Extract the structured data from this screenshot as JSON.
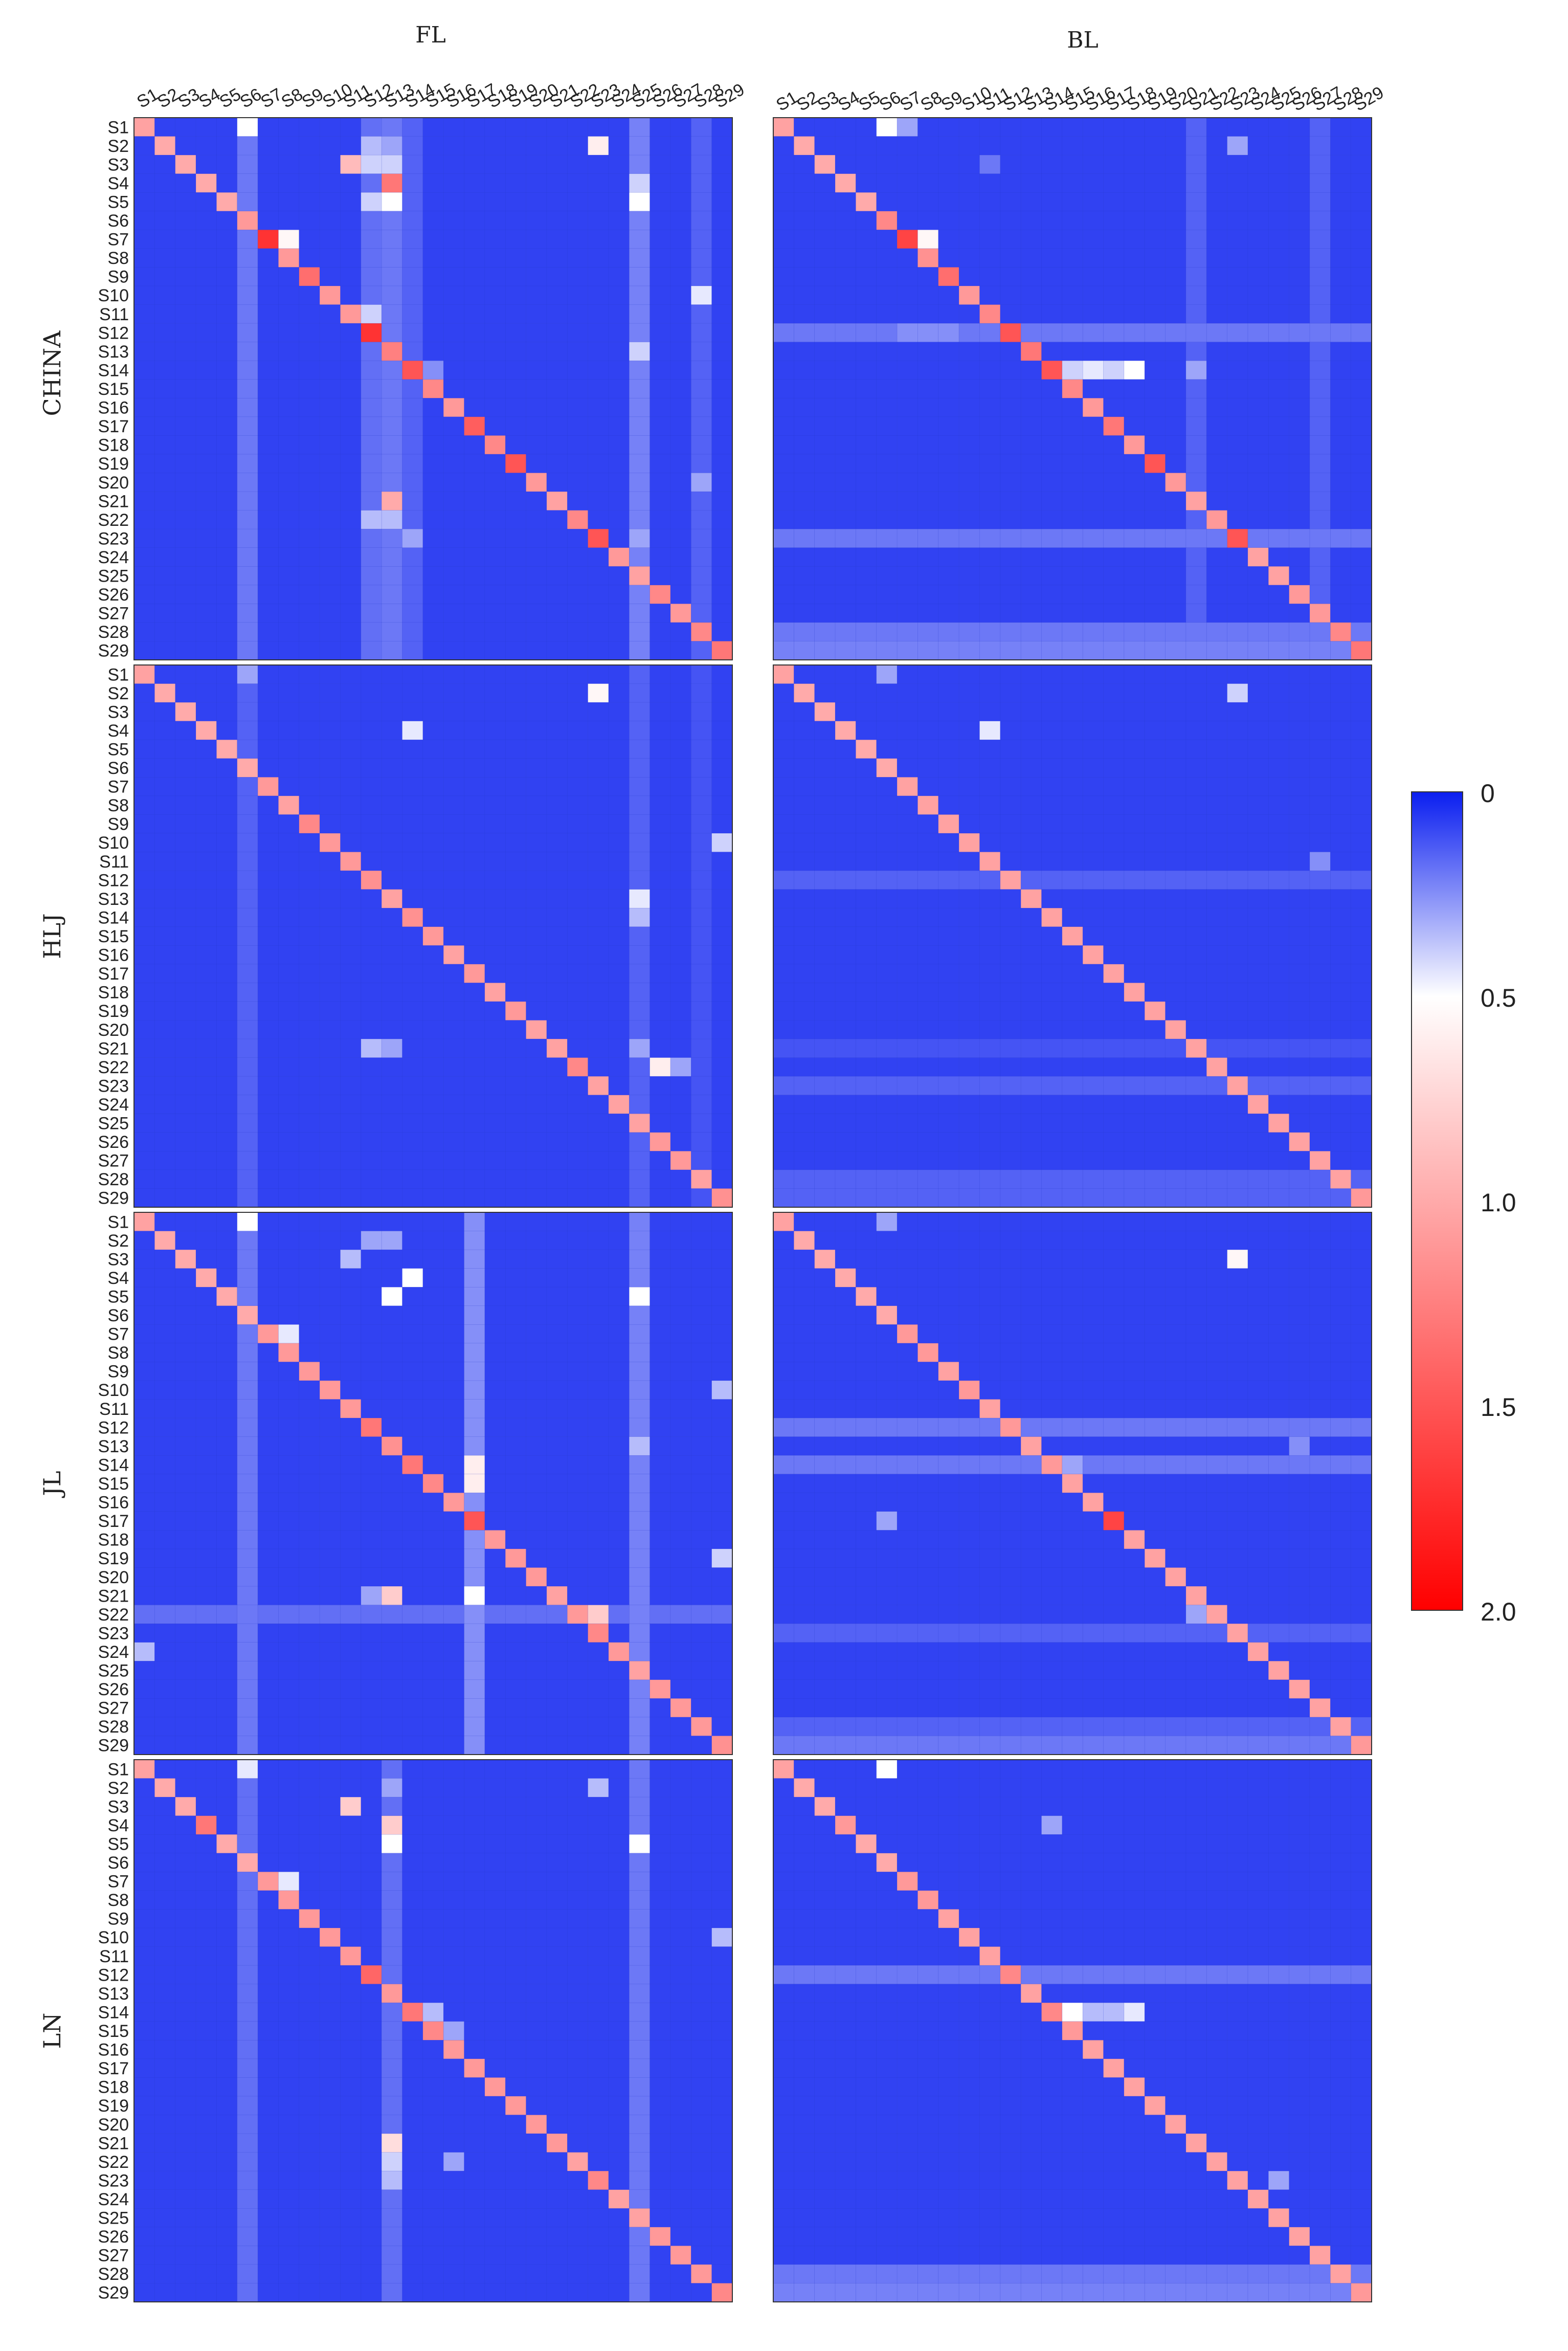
{
  "chart_data": {
    "type": "heatmap",
    "size": 29,
    "columns": [
      "FL",
      "BL"
    ],
    "regions": [
      "CHINA",
      "HLJ",
      "JL",
      "LN"
    ],
    "axis_labels": [
      "S1",
      "S2",
      "S3",
      "S4",
      "S5",
      "S6",
      "S7",
      "S8",
      "S9",
      "S10",
      "S11",
      "S12",
      "S13",
      "S14",
      "S15",
      "S16",
      "S17",
      "S18",
      "S19",
      "S20",
      "S21",
      "S22",
      "S23",
      "S24",
      "S25",
      "S26",
      "S27",
      "S28",
      "S29"
    ],
    "colorbar": {
      "min": 0,
      "max": 2.0,
      "tick_labels": [
        "0",
        "0.5",
        "1.0",
        "1.5",
        "2.0"
      ],
      "colors": [
        "#0a1ef0",
        "#ffffff",
        "#ff0000"
      ]
    },
    "baseline": {
      "value": 0.08
    },
    "row_band_default": 0.1,
    "panels": [
      {
        "region": "CHINA",
        "column": "FL",
        "diag": [
          1.05,
          1.0,
          1.0,
          1.0,
          1.0,
          1.1,
          1.7,
          1.1,
          1.35,
          1.1,
          1.1,
          1.7,
          1.25,
          1.5,
          1.2,
          1.1,
          1.45,
          1.2,
          1.5,
          1.1,
          1.05,
          1.2,
          1.5,
          1.1,
          1.05,
          1.2,
          1.1,
          1.2,
          1.3
        ],
        "cells": [
          [
            0,
            5,
            0.5
          ],
          [
            1,
            11,
            0.35
          ],
          [
            1,
            12,
            0.3
          ],
          [
            1,
            22,
            0.6
          ],
          [
            2,
            10,
            0.9
          ],
          [
            2,
            11,
            0.4
          ],
          [
            2,
            12,
            0.4
          ],
          [
            3,
            12,
            1.3
          ],
          [
            3,
            24,
            0.4
          ],
          [
            4,
            11,
            0.4
          ],
          [
            4,
            12,
            0.5
          ],
          [
            4,
            24,
            0.5
          ],
          [
            6,
            7,
            0.55
          ],
          [
            9,
            27,
            0.45
          ],
          [
            10,
            11,
            0.4
          ],
          [
            12,
            24,
            0.4
          ],
          [
            13,
            14,
            0.25
          ],
          [
            20,
            12,
            1.0
          ],
          [
            21,
            11,
            0.35
          ],
          [
            21,
            12,
            0.35
          ],
          [
            22,
            13,
            0.3
          ],
          [
            22,
            24,
            0.3
          ],
          [
            19,
            27,
            0.3
          ]
        ],
        "row_bands": [],
        "col_bands": [
          [
            5,
            0.2
          ],
          [
            11,
            0.18
          ],
          [
            12,
            0.2
          ],
          [
            13,
            0.15
          ],
          [
            24,
            0.22
          ],
          [
            27,
            0.15
          ]
        ]
      },
      {
        "region": "CHINA",
        "column": "BL",
        "diag": [
          1.05,
          1.0,
          1.0,
          1.0,
          1.0,
          1.2,
          1.6,
          1.15,
          1.35,
          1.1,
          1.2,
          1.5,
          1.3,
          1.5,
          1.2,
          1.1,
          1.3,
          1.1,
          1.5,
          1.1,
          1.05,
          1.1,
          1.5,
          1.05,
          1.05,
          1.1,
          1.1,
          1.2,
          1.3
        ],
        "cells": [
          [
            0,
            5,
            0.5
          ],
          [
            0,
            6,
            0.3
          ],
          [
            1,
            22,
            0.3
          ],
          [
            6,
            7,
            0.55
          ],
          [
            13,
            14,
            0.4
          ],
          [
            13,
            15,
            0.45
          ],
          [
            13,
            16,
            0.4
          ],
          [
            13,
            17,
            0.5
          ],
          [
            13,
            20,
            0.3
          ],
          [
            11,
            6,
            0.25
          ],
          [
            11,
            7,
            0.25
          ],
          [
            11,
            8,
            0.25
          ],
          [
            2,
            10,
            0.2
          ]
        ],
        "row_bands": [
          [
            11,
            0.2
          ],
          [
            22,
            0.2
          ],
          [
            27,
            0.2
          ],
          [
            28,
            0.22
          ]
        ],
        "col_bands": [
          [
            20,
            0.15
          ],
          [
            26,
            0.15
          ]
        ]
      },
      {
        "region": "HLJ",
        "column": "FL",
        "diag": [
          1.05,
          1.0,
          1.0,
          1.0,
          1.0,
          1.0,
          1.1,
          1.05,
          1.2,
          1.1,
          1.1,
          1.15,
          1.05,
          1.15,
          1.1,
          1.05,
          1.1,
          1.05,
          1.1,
          1.05,
          1.05,
          1.2,
          1.05,
          1.05,
          1.05,
          1.1,
          1.1,
          1.05,
          1.15
        ],
        "cells": [
          [
            0,
            5,
            0.3
          ],
          [
            1,
            22,
            0.55
          ],
          [
            3,
            13,
            0.45
          ],
          [
            9,
            28,
            0.4
          ],
          [
            12,
            24,
            0.45
          ],
          [
            13,
            24,
            0.35
          ],
          [
            20,
            11,
            0.35
          ],
          [
            20,
            12,
            0.3
          ],
          [
            20,
            24,
            0.3
          ],
          [
            21,
            25,
            0.6
          ],
          [
            21,
            26,
            0.3
          ]
        ],
        "row_bands": [],
        "col_bands": [
          [
            5,
            0.15
          ],
          [
            24,
            0.15
          ],
          [
            27,
            0.12
          ]
        ]
      },
      {
        "region": "HLJ",
        "column": "BL",
        "diag": [
          1.05,
          1.0,
          1.0,
          1.0,
          1.0,
          1.0,
          1.05,
          1.05,
          1.05,
          1.05,
          1.05,
          1.05,
          1.05,
          1.05,
          1.05,
          1.05,
          1.05,
          1.05,
          1.05,
          1.05,
          1.05,
          1.05,
          1.05,
          1.05,
          1.05,
          1.05,
          1.05,
          1.05,
          1.1
        ],
        "cells": [
          [
            0,
            5,
            0.3
          ],
          [
            1,
            22,
            0.4
          ],
          [
            3,
            10,
            0.45
          ],
          [
            10,
            26,
            0.25
          ]
        ],
        "row_bands": [
          [
            11,
            0.15
          ],
          [
            20,
            0.12
          ],
          [
            22,
            0.15
          ],
          [
            27,
            0.15
          ],
          [
            28,
            0.15
          ]
        ],
        "col_bands": []
      },
      {
        "region": "JL",
        "column": "FL",
        "diag": [
          1.05,
          1.0,
          1.0,
          1.0,
          1.0,
          1.0,
          1.1,
          1.1,
          1.1,
          1.1,
          1.1,
          1.3,
          1.15,
          1.3,
          1.2,
          1.1,
          1.5,
          1.1,
          1.1,
          1.1,
          1.05,
          1.1,
          1.2,
          1.1,
          1.05,
          1.1,
          1.1,
          1.1,
          1.15
        ],
        "cells": [
          [
            0,
            5,
            0.5
          ],
          [
            1,
            11,
            0.3
          ],
          [
            1,
            12,
            0.3
          ],
          [
            2,
            10,
            0.35
          ],
          [
            3,
            13,
            0.5
          ],
          [
            4,
            12,
            0.5
          ],
          [
            4,
            24,
            0.5
          ],
          [
            6,
            7,
            0.45
          ],
          [
            9,
            28,
            0.35
          ],
          [
            13,
            16,
            0.6
          ],
          [
            14,
            16,
            0.6
          ],
          [
            16,
            16,
            1.5
          ],
          [
            20,
            12,
            0.8
          ],
          [
            20,
            16,
            0.5
          ],
          [
            20,
            11,
            0.3
          ],
          [
            21,
            22,
            0.8
          ],
          [
            23,
            0,
            0.35
          ],
          [
            12,
            24,
            0.35
          ],
          [
            18,
            28,
            0.4
          ]
        ],
        "row_bands": [
          [
            21,
            0.18
          ]
        ],
        "col_bands": [
          [
            5,
            0.2
          ],
          [
            16,
            0.25
          ],
          [
            24,
            0.22
          ]
        ]
      },
      {
        "region": "JL",
        "column": "BL",
        "diag": [
          1.05,
          1.0,
          1.0,
          1.0,
          1.0,
          1.0,
          1.1,
          1.1,
          1.05,
          1.1,
          1.05,
          1.1,
          1.05,
          1.1,
          1.05,
          1.05,
          1.6,
          1.05,
          1.05,
          1.05,
          1.05,
          1.05,
          1.05,
          1.05,
          1.05,
          1.05,
          1.05,
          1.05,
          1.1
        ],
        "cells": [
          [
            0,
            5,
            0.3
          ],
          [
            2,
            22,
            0.55
          ],
          [
            13,
            14,
            0.3
          ],
          [
            16,
            5,
            0.3
          ],
          [
            21,
            20,
            0.3
          ],
          [
            12,
            25,
            0.25
          ]
        ],
        "row_bands": [
          [
            11,
            0.2
          ],
          [
            13,
            0.2
          ],
          [
            22,
            0.15
          ],
          [
            27,
            0.15
          ],
          [
            28,
            0.2
          ]
        ],
        "col_bands": []
      },
      {
        "region": "LN",
        "column": "FL",
        "diag": [
          1.05,
          1.0,
          1.0,
          1.3,
          1.0,
          1.0,
          1.1,
          1.1,
          1.1,
          1.1,
          1.1,
          1.4,
          1.1,
          1.3,
          1.2,
          1.1,
          1.1,
          1.1,
          1.1,
          1.1,
          1.1,
          1.05,
          1.2,
          1.05,
          1.05,
          1.1,
          1.1,
          1.1,
          1.2
        ],
        "cells": [
          [
            0,
            5,
            0.45
          ],
          [
            1,
            12,
            0.3
          ],
          [
            1,
            22,
            0.35
          ],
          [
            2,
            10,
            0.8
          ],
          [
            3,
            12,
            0.8
          ],
          [
            4,
            12,
            0.5
          ],
          [
            4,
            24,
            0.5
          ],
          [
            6,
            7,
            0.45
          ],
          [
            9,
            28,
            0.35
          ],
          [
            13,
            14,
            0.35
          ],
          [
            14,
            15,
            0.3
          ],
          [
            20,
            12,
            0.7
          ],
          [
            21,
            12,
            0.4
          ],
          [
            21,
            15,
            0.3
          ],
          [
            22,
            12,
            0.35
          ]
        ],
        "row_bands": [],
        "col_bands": [
          [
            5,
            0.18
          ],
          [
            12,
            0.18
          ],
          [
            24,
            0.2
          ]
        ]
      },
      {
        "region": "LN",
        "column": "BL",
        "diag": [
          1.05,
          1.0,
          1.0,
          1.1,
          1.0,
          1.0,
          1.1,
          1.1,
          1.05,
          1.05,
          1.05,
          1.2,
          1.05,
          1.2,
          1.1,
          1.05,
          1.05,
          1.05,
          1.05,
          1.05,
          1.05,
          1.05,
          1.05,
          1.05,
          1.05,
          1.05,
          1.05,
          1.05,
          1.1
        ],
        "cells": [
          [
            0,
            5,
            0.5
          ],
          [
            3,
            13,
            0.3
          ],
          [
            13,
            14,
            0.5
          ],
          [
            13,
            15,
            0.35
          ],
          [
            13,
            16,
            0.35
          ],
          [
            13,
            17,
            0.45
          ],
          [
            22,
            24,
            0.3
          ]
        ],
        "row_bands": [
          [
            11,
            0.2
          ],
          [
            27,
            0.2
          ],
          [
            28,
            0.22
          ]
        ],
        "col_bands": []
      }
    ]
  }
}
